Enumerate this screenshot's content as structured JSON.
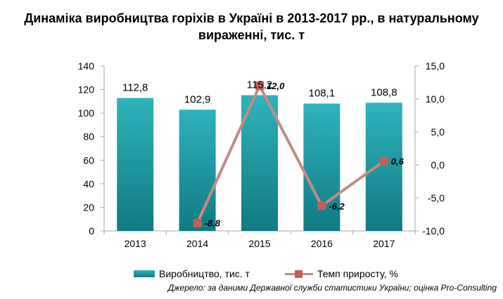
{
  "title_line1": "Динаміка виробництва горіхів в Україні в 2013-2017 рр., в натуральному",
  "title_line2": "вираженні, тис. т",
  "source": "Джерело: за даними Державної служби статистики України; оцінка Pro-Consulting",
  "colors": {
    "bar_top": "#2fb3bc",
    "bar_bottom": "#107a82",
    "line": "#c38b83",
    "marker": "#c0605a"
  },
  "chart_data": {
    "type": "bar+line",
    "categories": [
      "2013",
      "2014",
      "2015",
      "2016",
      "2017"
    ],
    "y_left": {
      "ticks": [
        "0",
        "20",
        "40",
        "60",
        "80",
        "100",
        "120",
        "140"
      ],
      "ylim": [
        0,
        140
      ]
    },
    "y_right": {
      "ticks": [
        "-10,0",
        "-5,0",
        "0,0",
        "5,0",
        "10,0",
        "15,0"
      ],
      "ylim": [
        -10,
        15
      ]
    },
    "series": [
      {
        "name": "Виробництво, тис. т",
        "type": "bar",
        "axis": "left",
        "values": [
          112.8,
          102.9,
          115.2,
          108.1,
          108.8
        ],
        "labels": [
          "112,8",
          "102,9",
          "115,2",
          "108,1",
          "108,8"
        ]
      },
      {
        "name": "Темп приросту, %",
        "type": "line",
        "axis": "right",
        "values": [
          null,
          -8.8,
          12.0,
          -6.2,
          0.6
        ],
        "labels": [
          "",
          "-8,8",
          "12,0",
          "-6,2",
          "0,6"
        ]
      }
    ],
    "legend_position": "bottom",
    "grid": false
  }
}
